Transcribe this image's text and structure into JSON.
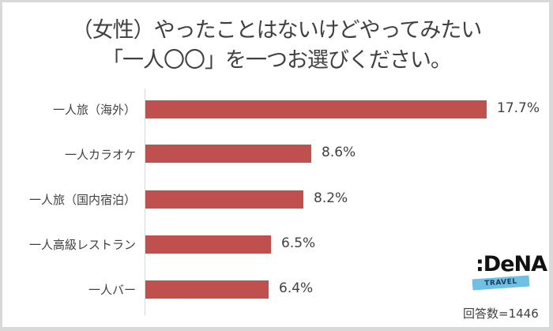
{
  "chart_data": {
    "type": "bar",
    "orientation": "horizontal",
    "title": "（女性）やったことはないけどやってみたい「一人〇〇」を一つお選びください。",
    "title_lines": [
      "（女性）やったことはないけどやってみたい",
      "「一人〇〇」を一つお選びください。"
    ],
    "categories": [
      "一人旅（海外）",
      "一人カラオケ",
      "一人旅（国内宿泊）",
      "一人高級レストラン",
      "一人バー"
    ],
    "values": [
      17.7,
      8.6,
      8.2,
      6.5,
      6.4
    ],
    "value_labels": [
      "17.7%",
      "8.6%",
      "8.2%",
      "6.5%",
      "6.4%"
    ],
    "unit": "%",
    "xlabel": "",
    "ylabel": "",
    "grid": false,
    "legend": null,
    "bar_color": "#c0504d",
    "annotations": [
      "回答数=1446"
    ]
  },
  "branding": {
    "logo_main": ":DeNA",
    "logo_sub": "TRAVEL"
  },
  "footer": {
    "respondents": "回答数=1446"
  }
}
